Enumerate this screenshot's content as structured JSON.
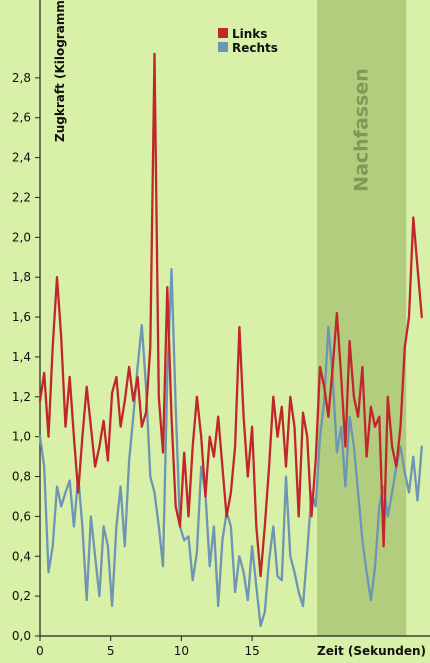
{
  "chart_data": {
    "type": "line",
    "ylabel": "Zugkraft (Kilogramm)",
    "xlabel": "Zeit (Sekunden)",
    "xlim": [
      0,
      27.3
    ],
    "ylim": [
      0,
      3.0
    ],
    "x_ticks": [
      "0",
      "5",
      "10",
      "15"
    ],
    "x_tick_values": [
      0,
      5,
      10,
      15
    ],
    "y_ticks": [
      "0,0",
      "0,2",
      "0,4",
      "0,6",
      "0,8",
      "1,0",
      "1,2",
      "1,4",
      "1,6",
      "1,8",
      "2,0",
      "2,2",
      "2,4",
      "2,6",
      "2,8"
    ],
    "y_tick_values": [
      0,
      0.2,
      0.4,
      0.6,
      0.8,
      1.0,
      1.2,
      1.4,
      1.6,
      1.8,
      2.0,
      2.2,
      2.4,
      2.6,
      2.8
    ],
    "band": {
      "label": "Nachfassen",
      "x_start": 19.6,
      "x_end": 25.9
    },
    "grid": false,
    "legend_position": "top-center",
    "colors": {
      "background": "#d9f0a8",
      "band": "#b2cd7e",
      "band_text": "#7e9a57",
      "links": "#c0272d",
      "rechts": "#6e95b3"
    },
    "series": [
      {
        "name": "Links",
        "x": [
          0,
          0.3,
          0.6,
          0.9,
          1.2,
          1.5,
          1.8,
          2.1,
          2.4,
          2.7,
          3.0,
          3.3,
          3.6,
          3.9,
          4.2,
          4.5,
          4.8,
          5.1,
          5.4,
          5.7,
          6.0,
          6.3,
          6.6,
          6.9,
          7.2,
          7.5,
          7.8,
          8.1,
          8.4,
          8.7,
          9.0,
          9.3,
          9.6,
          9.9,
          10.2,
          10.5,
          10.8,
          11.1,
          11.4,
          11.7,
          12.0,
          12.3,
          12.6,
          12.9,
          13.2,
          13.5,
          13.8,
          14.1,
          14.4,
          14.7,
          15.0,
          15.3,
          15.6,
          15.9,
          16.2,
          16.5,
          16.8,
          17.1,
          17.4,
          17.7,
          18.0,
          18.3,
          18.6,
          18.9,
          19.2,
          19.5,
          19.8,
          20.1,
          20.4,
          20.7,
          21.0,
          21.3,
          21.6,
          21.9,
          22.2,
          22.5,
          22.8,
          23.1,
          23.4,
          23.7,
          24.0,
          24.3,
          24.6,
          24.9,
          25.2,
          25.5,
          25.8,
          26.1,
          26.4,
          26.7,
          27.0
        ],
        "y": [
          1.18,
          1.32,
          1.0,
          1.45,
          1.8,
          1.5,
          1.05,
          1.3,
          1.0,
          0.72,
          1.0,
          1.25,
          1.05,
          0.85,
          0.95,
          1.08,
          0.88,
          1.22,
          1.3,
          1.05,
          1.18,
          1.35,
          1.18,
          1.3,
          1.05,
          1.12,
          1.45,
          2.92,
          1.2,
          0.92,
          1.75,
          1.1,
          0.65,
          0.55,
          0.92,
          0.6,
          0.95,
          1.2,
          1.0,
          0.7,
          1.0,
          0.9,
          1.1,
          0.85,
          0.6,
          0.72,
          0.95,
          1.55,
          1.1,
          0.8,
          1.05,
          0.55,
          0.3,
          0.55,
          0.85,
          1.2,
          1.0,
          1.15,
          0.85,
          1.2,
          1.05,
          0.6,
          1.12,
          1.0,
          0.6,
          0.88,
          1.35,
          1.25,
          1.1,
          1.35,
          1.62,
          1.3,
          0.95,
          1.48,
          1.2,
          1.1,
          1.35,
          0.9,
          1.15,
          1.05,
          1.1,
          0.45,
          1.2,
          0.95,
          0.85,
          1.05,
          1.45,
          1.6,
          2.1,
          1.85,
          1.6
        ]
      },
      {
        "name": "Rechts",
        "x": [
          0,
          0.3,
          0.6,
          0.9,
          1.2,
          1.5,
          1.8,
          2.1,
          2.4,
          2.7,
          3.0,
          3.3,
          3.6,
          3.9,
          4.2,
          4.5,
          4.8,
          5.1,
          5.4,
          5.7,
          6.0,
          6.3,
          6.6,
          6.9,
          7.2,
          7.5,
          7.8,
          8.1,
          8.4,
          8.7,
          9.0,
          9.3,
          9.6,
          9.9,
          10.2,
          10.5,
          10.8,
          11.1,
          11.4,
          11.7,
          12.0,
          12.3,
          12.6,
          12.9,
          13.2,
          13.5,
          13.8,
          14.1,
          14.4,
          14.7,
          15.0,
          15.3,
          15.6,
          15.9,
          16.2,
          16.5,
          16.8,
          17.1,
          17.4,
          17.7,
          18.0,
          18.3,
          18.6,
          18.9,
          19.2,
          19.5,
          19.8,
          20.1,
          20.4,
          20.7,
          21.0,
          21.3,
          21.6,
          21.9,
          22.2,
          22.5,
          22.8,
          23.1,
          23.4,
          23.7,
          24.0,
          24.3,
          24.6,
          24.9,
          25.2,
          25.5,
          25.8,
          26.1,
          26.4,
          26.7,
          27.0
        ],
        "y": [
          1.0,
          0.85,
          0.32,
          0.45,
          0.75,
          0.65,
          0.72,
          0.78,
          0.55,
          0.8,
          0.55,
          0.18,
          0.6,
          0.4,
          0.2,
          0.55,
          0.45,
          0.15,
          0.55,
          0.75,
          0.45,
          0.88,
          1.1,
          1.35,
          1.56,
          1.25,
          0.8,
          0.72,
          0.55,
          0.35,
          1.3,
          1.84,
          1.15,
          0.55,
          0.48,
          0.5,
          0.28,
          0.42,
          0.85,
          0.72,
          0.35,
          0.55,
          0.15,
          0.48,
          0.62,
          0.55,
          0.22,
          0.4,
          0.32,
          0.18,
          0.45,
          0.25,
          0.05,
          0.12,
          0.38,
          0.55,
          0.3,
          0.28,
          0.8,
          0.4,
          0.32,
          0.22,
          0.15,
          0.42,
          0.72,
          0.65,
          1.0,
          1.18,
          1.55,
          1.3,
          0.92,
          1.05,
          0.75,
          1.1,
          0.95,
          0.72,
          0.48,
          0.32,
          0.18,
          0.35,
          0.65,
          0.75,
          0.6,
          0.72,
          0.85,
          0.95,
          0.82,
          0.72,
          0.9,
          0.68,
          0.95
        ]
      }
    ]
  }
}
